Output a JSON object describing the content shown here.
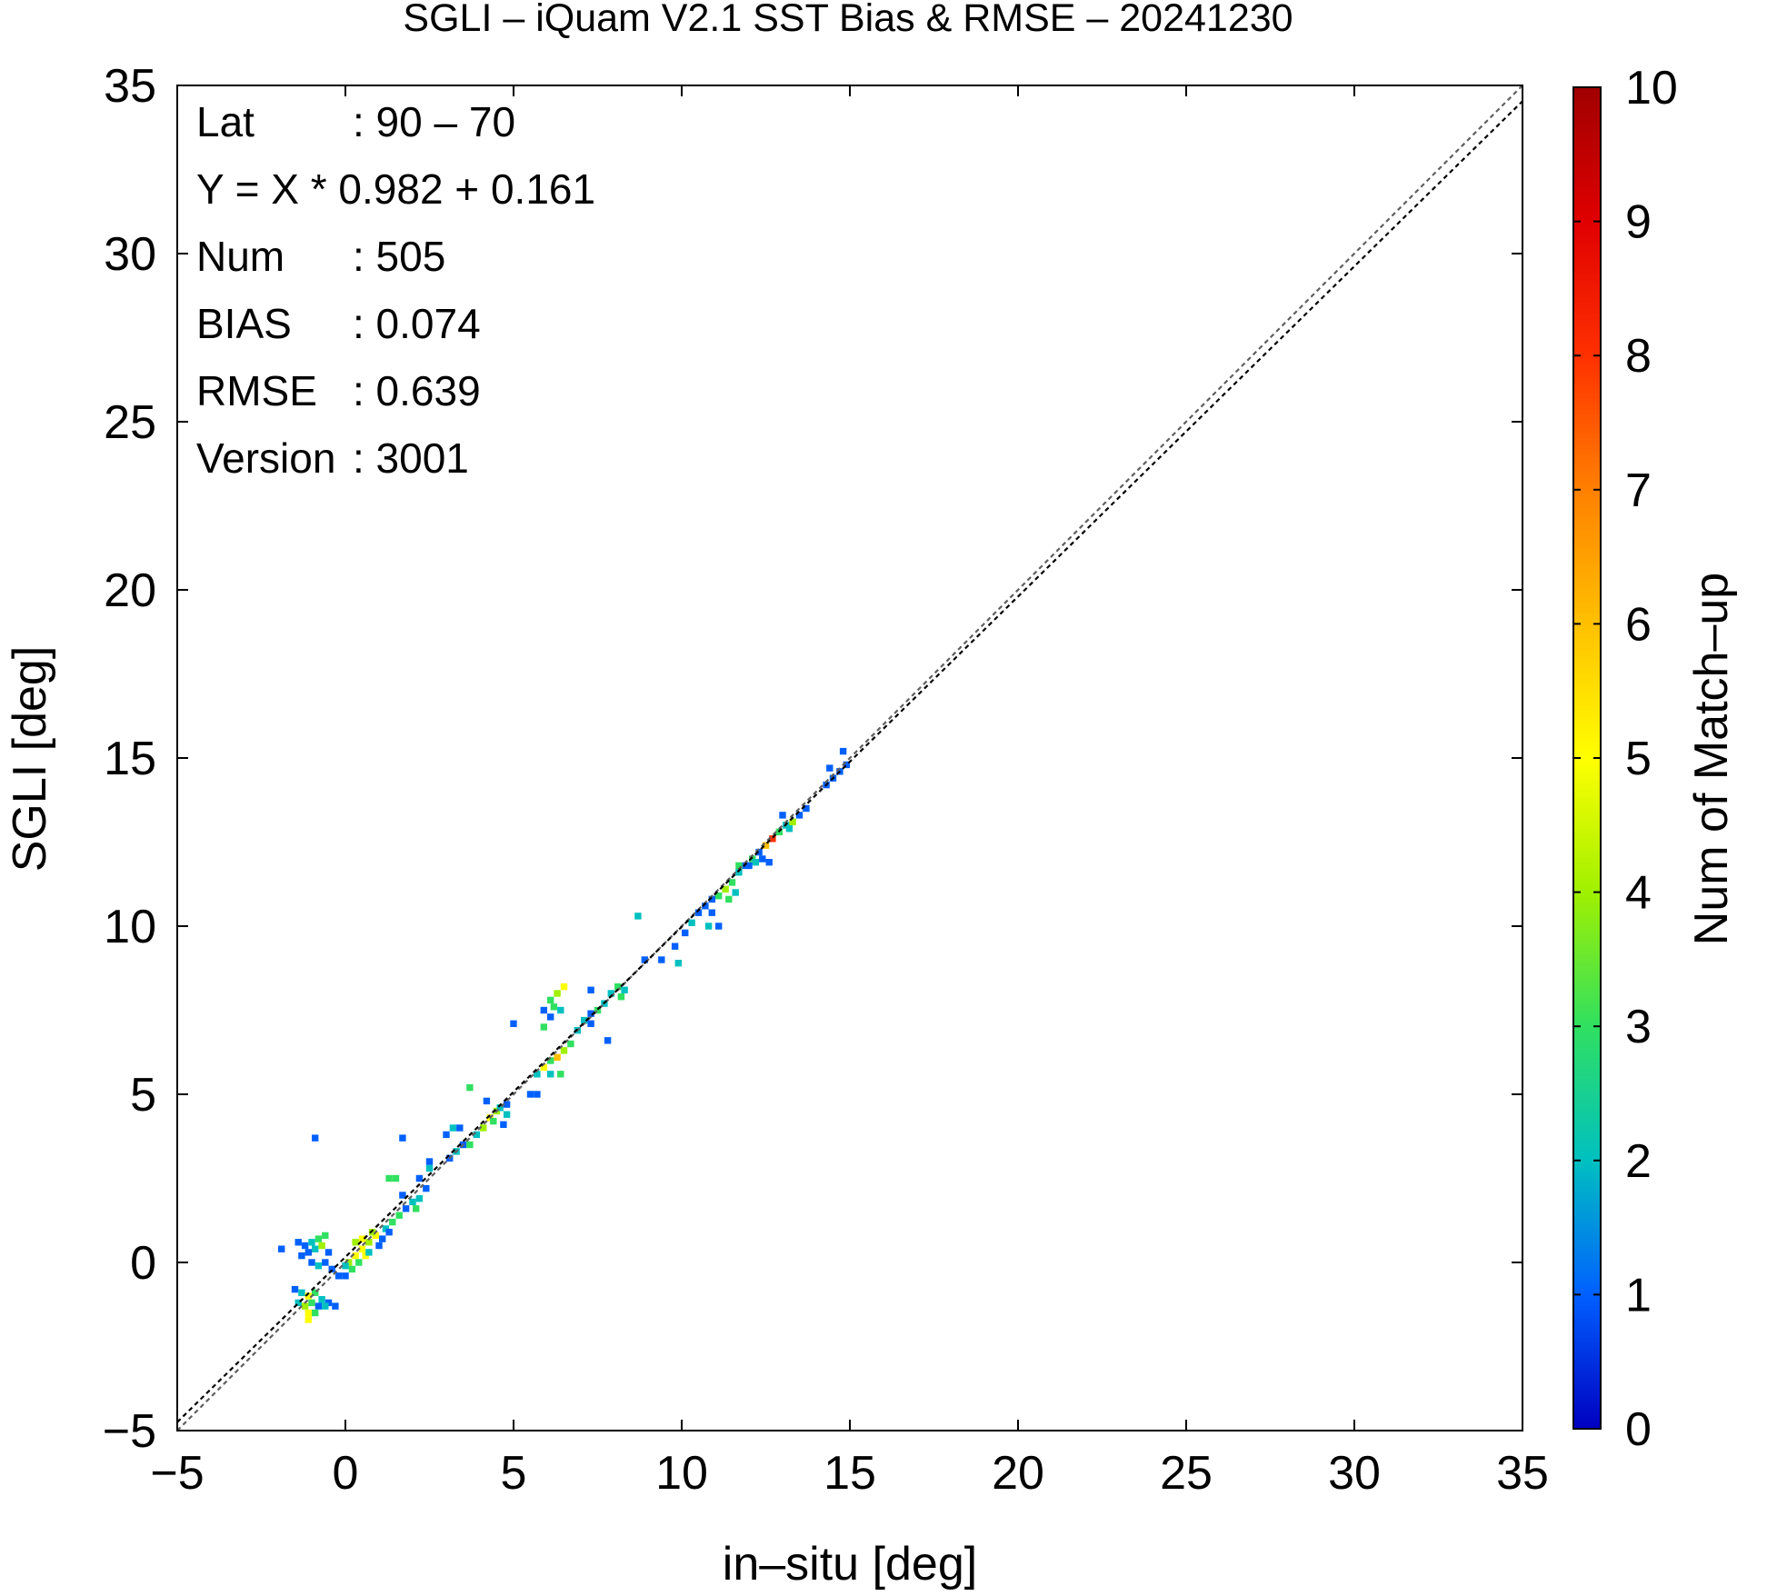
{
  "chart_data": {
    "type": "heatmap",
    "title": "SGLI – iQuam V2.1 SST Bias & RMSE  – 20241230",
    "xlabel": "in–situ [deg]",
    "ylabel": "SGLI [deg]",
    "xlim": [
      -5,
      35
    ],
    "ylim": [
      -5,
      35
    ],
    "xticks": [
      "−5",
      "0",
      "5",
      "10",
      "15",
      "20",
      "25",
      "30",
      "35"
    ],
    "yticks": [
      "−5",
      "0",
      "5",
      "10",
      "15",
      "20",
      "25",
      "30",
      "35"
    ],
    "grid": false,
    "colorbar": {
      "label": "Num of Match–up",
      "min": 0,
      "max": 10,
      "ticks": [
        "0",
        "1",
        "2",
        "3",
        "4",
        "5",
        "6",
        "7",
        "8",
        "9",
        "10"
      ],
      "colors": [
        "#0000c0",
        "#0060ff",
        "#00c0c0",
        "#30e060",
        "#a0f000",
        "#ffff00",
        "#ffc000",
        "#ff8000",
        "#ff3000",
        "#e00000",
        "#a00000"
      ]
    },
    "stats": {
      "rows": [
        {
          "label": "Lat",
          "value": ": 90 – 70"
        },
        {
          "label": "Y = X * 0.982 + 0.161",
          "value": ""
        },
        {
          "label": "Num",
          "value": ": 505"
        },
        {
          "label": "BIAS",
          "value": ": 0.074"
        },
        {
          "label": "RMSE",
          "value": ": 0.639"
        },
        {
          "label": "Version",
          "value": ": 3001"
        }
      ]
    },
    "lines": [
      {
        "kind": "one-to-one",
        "slope": 1.0,
        "intercept": 0.0,
        "color": "#606060",
        "dash": true
      },
      {
        "kind": "regression",
        "slope": 0.982,
        "intercept": 0.161,
        "color": "#000000",
        "dash": true
      }
    ],
    "cells": [
      [
        -1.9,
        0.4,
        1
      ],
      [
        -1.4,
        0.6,
        1
      ],
      [
        -1.2,
        0.5,
        1
      ],
      [
        -1.0,
        0.6,
        2
      ],
      [
        -0.8,
        0.7,
        3
      ],
      [
        -0.6,
        0.8,
        3
      ],
      [
        -1.3,
        0.2,
        1
      ],
      [
        -1.1,
        0.3,
        1
      ],
      [
        -0.9,
        0.4,
        2
      ],
      [
        -0.7,
        0.5,
        4
      ],
      [
        -0.5,
        0.3,
        1
      ],
      [
        -1.0,
        0.0,
        1
      ],
      [
        -0.8,
        -0.1,
        2
      ],
      [
        -0.6,
        0.0,
        1
      ],
      [
        -0.4,
        -0.2,
        1
      ],
      [
        -0.2,
        -0.4,
        1
      ],
      [
        0.0,
        -0.4,
        1
      ],
      [
        -1.5,
        -0.8,
        1
      ],
      [
        -1.3,
        -0.9,
        2
      ],
      [
        -1.1,
        -1.0,
        5
      ],
      [
        -0.9,
        -0.9,
        3
      ],
      [
        -0.7,
        -1.1,
        2
      ],
      [
        -0.5,
        -1.2,
        1
      ],
      [
        -1.4,
        -1.2,
        2
      ],
      [
        -1.2,
        -1.3,
        4
      ],
      [
        -1.0,
        -1.2,
        3
      ],
      [
        -0.8,
        -1.3,
        1
      ],
      [
        -0.6,
        -1.3,
        2
      ],
      [
        -0.3,
        -1.3,
        1
      ],
      [
        -1.1,
        -1.5,
        5
      ],
      [
        -1.1,
        -1.7,
        5
      ],
      [
        -0.9,
        -1.5,
        3
      ],
      [
        0.1,
        0.0,
        4
      ],
      [
        0.3,
        0.2,
        5
      ],
      [
        0.5,
        0.4,
        5
      ],
      [
        0.7,
        0.6,
        4
      ],
      [
        0.9,
        0.8,
        5
      ],
      [
        0.4,
        0.0,
        3
      ],
      [
        0.6,
        0.2,
        5
      ],
      [
        0.2,
        -0.2,
        3
      ],
      [
        0.0,
        -0.1,
        2
      ],
      [
        0.8,
        0.9,
        4
      ],
      [
        0.7,
        0.3,
        2
      ],
      [
        1.1,
        0.7,
        1
      ],
      [
        1.2,
        1.0,
        2
      ],
      [
        1.4,
        1.2,
        3
      ],
      [
        1.6,
        1.4,
        3
      ],
      [
        1.3,
        0.9,
        1
      ],
      [
        1.0,
        0.5,
        1
      ],
      [
        0.5,
        0.7,
        5
      ],
      [
        0.3,
        0.6,
        4
      ],
      [
        1.8,
        1.6,
        1
      ],
      [
        2.0,
        1.8,
        2
      ],
      [
        2.2,
        1.9,
        2
      ],
      [
        2.4,
        2.2,
        1
      ],
      [
        2.1,
        1.6,
        3
      ],
      [
        1.3,
        2.5,
        3
      ],
      [
        1.5,
        2.5,
        3
      ],
      [
        1.7,
        2.0,
        1
      ],
      [
        2.2,
        2.5,
        1
      ],
      [
        2.5,
        2.8,
        2
      ],
      [
        3.1,
        3.1,
        1
      ],
      [
        3.3,
        3.3,
        2
      ],
      [
        3.5,
        3.5,
        1
      ],
      [
        3.0,
        3.8,
        1
      ],
      [
        3.2,
        4.0,
        2
      ],
      [
        3.4,
        4.0,
        1
      ],
      [
        3.7,
        3.5,
        3
      ],
      [
        3.9,
        3.8,
        2
      ],
      [
        4.1,
        4.0,
        4
      ],
      [
        4.3,
        4.3,
        5
      ],
      [
        4.5,
        4.5,
        4
      ],
      [
        4.4,
        4.2,
        3
      ],
      [
        4.6,
        4.6,
        2
      ],
      [
        4.8,
        4.7,
        1
      ],
      [
        4.2,
        4.8,
        1
      ],
      [
        4.7,
        4.1,
        1
      ],
      [
        4.8,
        4.4,
        2
      ],
      [
        3.7,
        5.2,
        3
      ],
      [
        5.5,
        5.0,
        1
      ],
      [
        5.7,
        5.0,
        1
      ],
      [
        5.7,
        5.6,
        2
      ],
      [
        5.9,
        5.8,
        5
      ],
      [
        6.1,
        6.0,
        3
      ],
      [
        6.3,
        6.1,
        6
      ],
      [
        6.1,
        5.6,
        2
      ],
      [
        6.4,
        5.6,
        3
      ],
      [
        6.5,
        6.3,
        4
      ],
      [
        6.7,
        6.5,
        3
      ],
      [
        6.9,
        6.9,
        2
      ],
      [
        5.0,
        7.1,
        1
      ],
      [
        5.9,
        7.5,
        1
      ],
      [
        6.1,
        7.8,
        3
      ],
      [
        6.3,
        8.0,
        4
      ],
      [
        6.5,
        8.2,
        5
      ],
      [
        6.2,
        7.6,
        3
      ],
      [
        6.4,
        7.5,
        2
      ],
      [
        5.9,
        7.0,
        3
      ],
      [
        6.1,
        7.3,
        1
      ],
      [
        7.1,
        7.2,
        2
      ],
      [
        7.3,
        7.4,
        1
      ],
      [
        7.5,
        7.5,
        3
      ],
      [
        7.7,
        7.7,
        2
      ],
      [
        7.9,
        8.0,
        2
      ],
      [
        8.1,
        8.2,
        3
      ],
      [
        8.3,
        8.1,
        2
      ],
      [
        8.2,
        7.9,
        3
      ],
      [
        7.3,
        8.1,
        1
      ],
      [
        7.8,
        6.6,
        1
      ],
      [
        7.3,
        7.1,
        1
      ],
      [
        8.9,
        9.0,
        1
      ],
      [
        8.7,
        10.3,
        2
      ],
      [
        9.4,
        9.0,
        1
      ],
      [
        9.9,
        8.9,
        2
      ],
      [
        9.8,
        9.4,
        1
      ],
      [
        10.1,
        9.8,
        1
      ],
      [
        10.3,
        10.1,
        2
      ],
      [
        10.5,
        10.4,
        1
      ],
      [
        10.7,
        10.6,
        1
      ],
      [
        10.9,
        10.8,
        1
      ],
      [
        11.1,
        10.9,
        3
      ],
      [
        10.9,
        10.4,
        1
      ],
      [
        10.8,
        10.0,
        2
      ],
      [
        11.3,
        11.1,
        4
      ],
      [
        11.5,
        11.3,
        3
      ],
      [
        11.7,
        11.6,
        2
      ],
      [
        11.9,
        11.8,
        1
      ],
      [
        11.1,
        10.0,
        1
      ],
      [
        11.4,
        10.8,
        3
      ],
      [
        11.6,
        11.0,
        2
      ],
      [
        11.7,
        11.8,
        3
      ],
      [
        12.1,
        12.0,
        3
      ],
      [
        12.3,
        12.2,
        1
      ],
      [
        12.5,
        12.4,
        6
      ],
      [
        12.7,
        12.6,
        8
      ],
      [
        12.9,
        12.8,
        3
      ],
      [
        13.1,
        13.0,
        2
      ],
      [
        12.0,
        11.8,
        1
      ],
      [
        12.2,
        11.9,
        2
      ],
      [
        12.4,
        12.0,
        1
      ],
      [
        12.6,
        11.9,
        1
      ],
      [
        13.3,
        13.1,
        4
      ],
      [
        13.5,
        13.3,
        1
      ],
      [
        13.7,
        13.5,
        1
      ],
      [
        13.0,
        13.3,
        1
      ],
      [
        13.2,
        12.9,
        2
      ],
      [
        14.3,
        14.2,
        1
      ],
      [
        14.5,
        14.4,
        1
      ],
      [
        14.7,
        14.6,
        1
      ],
      [
        14.9,
        14.8,
        1
      ],
      [
        14.8,
        15.2,
        1
      ],
      [
        14.4,
        14.7,
        1
      ],
      [
        -0.9,
        3.7,
        1
      ],
      [
        1.7,
        3.7,
        1
      ],
      [
        2.5,
        3.0,
        1
      ]
    ]
  }
}
